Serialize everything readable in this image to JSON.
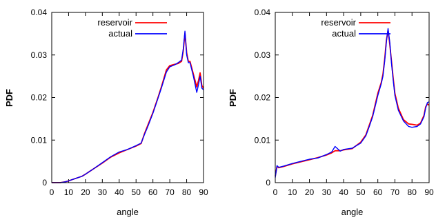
{
  "chart_data": [
    {
      "type": "line",
      "xlabel": "angle",
      "ylabel": "PDF",
      "xlim": [
        0,
        90
      ],
      "ylim": [
        0,
        0.04
      ],
      "xticks": [
        "0",
        "10",
        "20",
        "30",
        "40",
        "50",
        "60",
        "70",
        "80",
        "90"
      ],
      "yticks": [
        "0",
        "0.01",
        "0.02",
        "0.03",
        "0.04"
      ],
      "legend_position": "top-left",
      "series": [
        {
          "name": "reservoir",
          "color": "#ff0000",
          "x": [
            0,
            5,
            8,
            10,
            12,
            15,
            18,
            20,
            25,
            30,
            35,
            40,
            45,
            50,
            53,
            55,
            57,
            60,
            63,
            65,
            68,
            70,
            73,
            75,
            77,
            78,
            79,
            80,
            81,
            82,
            84,
            86,
            87,
            88,
            89,
            90
          ],
          "y": [
            0,
            0,
            0.0002,
            0.0004,
            0.0007,
            0.0011,
            0.0015,
            0.002,
            0.0033,
            0.0046,
            0.006,
            0.007,
            0.0078,
            0.0086,
            0.0092,
            0.0115,
            0.0135,
            0.0165,
            0.02,
            0.0225,
            0.0265,
            0.0275,
            0.0278,
            0.028,
            0.0285,
            0.031,
            0.0352,
            0.0305,
            0.0285,
            0.0285,
            0.0255,
            0.0225,
            0.024,
            0.0258,
            0.0228,
            0.0222
          ]
        },
        {
          "name": "actual",
          "color": "#0000ff",
          "x": [
            0,
            5,
            8,
            10,
            12,
            15,
            18,
            20,
            25,
            30,
            35,
            40,
            45,
            50,
            53,
            55,
            57,
            60,
            63,
            65,
            68,
            70,
            73,
            75,
            77,
            78,
            79,
            80,
            81,
            82,
            84,
            86,
            87,
            88,
            89,
            90
          ],
          "y": [
            0,
            0,
            0.0002,
            0.0004,
            0.0007,
            0.0011,
            0.0015,
            0.002,
            0.0033,
            0.0047,
            0.0061,
            0.0072,
            0.0078,
            0.0087,
            0.0093,
            0.0113,
            0.0132,
            0.0163,
            0.0198,
            0.0222,
            0.026,
            0.0272,
            0.0277,
            0.0282,
            0.0288,
            0.0315,
            0.0356,
            0.03,
            0.0282,
            0.0282,
            0.025,
            0.0212,
            0.023,
            0.025,
            0.0222,
            0.0218
          ]
        }
      ]
    },
    {
      "type": "line",
      "xlabel": "angle",
      "ylabel": "PDF",
      "xlim": [
        0,
        90
      ],
      "ylim": [
        0,
        0.04
      ],
      "xticks": [
        "0",
        "10",
        "20",
        "30",
        "40",
        "50",
        "60",
        "70",
        "80",
        "90"
      ],
      "yticks": [
        "0",
        "0.01",
        "0.02",
        "0.03",
        "0.04"
      ],
      "legend_position": "top-left",
      "series": [
        {
          "name": "reservoir",
          "color": "#ff0000",
          "x": [
            0,
            1,
            2,
            5,
            10,
            15,
            20,
            25,
            30,
            33,
            35,
            38,
            40,
            45,
            50,
            53,
            55,
            57,
            60,
            62,
            63,
            64,
            65,
            66,
            67,
            68,
            69,
            70,
            72,
            75,
            78,
            80,
            83,
            85,
            87,
            88,
            89,
            90
          ],
          "y": [
            0.0015,
            0.0038,
            0.0035,
            0.0038,
            0.0044,
            0.0049,
            0.0054,
            0.0059,
            0.0065,
            0.007,
            0.0075,
            0.0075,
            0.0077,
            0.008,
            0.0095,
            0.0112,
            0.0135,
            0.0158,
            0.021,
            0.0235,
            0.0255,
            0.029,
            0.0335,
            0.0358,
            0.0325,
            0.0285,
            0.0245,
            0.021,
            0.0175,
            0.0148,
            0.0138,
            0.0137,
            0.0135,
            0.014,
            0.0158,
            0.0178,
            0.0185,
            0.0182
          ]
        },
        {
          "name": "actual",
          "color": "#0000ff",
          "x": [
            0,
            1,
            2,
            5,
            10,
            15,
            20,
            25,
            30,
            33,
            35,
            38,
            40,
            45,
            50,
            53,
            55,
            57,
            60,
            62,
            63,
            64,
            65,
            66,
            67,
            68,
            69,
            70,
            72,
            75,
            78,
            80,
            83,
            85,
            87,
            88,
            89,
            90
          ],
          "y": [
            0.0012,
            0.004,
            0.0036,
            0.0039,
            0.0045,
            0.005,
            0.0055,
            0.0058,
            0.0066,
            0.0072,
            0.0085,
            0.0074,
            0.0078,
            0.0081,
            0.0093,
            0.011,
            0.0132,
            0.0155,
            0.0205,
            0.0232,
            0.025,
            0.0285,
            0.033,
            0.0362,
            0.033,
            0.028,
            0.024,
            0.0205,
            0.017,
            0.0145,
            0.0132,
            0.013,
            0.0132,
            0.0138,
            0.0155,
            0.0175,
            0.0188,
            0.019
          ]
        }
      ]
    }
  ]
}
